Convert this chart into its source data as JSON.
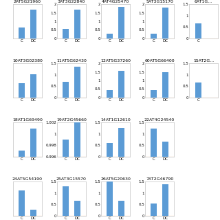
{
  "subplots": [
    {
      "title": "2AT5G21960",
      "C": 0.65,
      "DC": 1.7,
      "ylim": [
        0,
        2
      ],
      "yticks": [
        0,
        0.5,
        1,
        1.5,
        2
      ],
      "no_ylabels": true
    },
    {
      "title": "3AT3G22840",
      "C": 0.55,
      "DC": 1.7,
      "ylim": [
        0,
        2
      ],
      "yticks": [
        0,
        0.5,
        1,
        1.5,
        2
      ]
    },
    {
      "title": "4AT4G25470",
      "C": 0.25,
      "DC": 1.85,
      "ylim": [
        0,
        2
      ],
      "yticks": [
        0,
        0.5,
        1,
        1.5,
        2
      ]
    },
    {
      "title": "5AT3G15170",
      "C": 0.25,
      "DC": 1.8,
      "ylim": [
        0,
        2
      ],
      "yticks": [
        0,
        0.5,
        1,
        1.5,
        2
      ]
    },
    {
      "title": "6AT1G...",
      "C": 0.65,
      "DC": null,
      "ylim": [
        0,
        1.5
      ],
      "yticks": [
        0,
        0.5,
        1,
        1.5
      ],
      "partial": true
    },
    {
      "title": "10AT3G02380",
      "C": 0.85,
      "DC": 1.35,
      "ylim": [
        0,
        2
      ],
      "yticks": [
        0,
        0.5,
        1,
        1.5,
        2
      ],
      "no_ylabels": true
    },
    {
      "title": "11AT5G62430",
      "C": 0.7,
      "DC": 1.35,
      "ylim": [
        0,
        1.5
      ],
      "yticks": [
        0,
        0.5,
        1,
        1.5
      ]
    },
    {
      "title": "12AT5G37260",
      "C": 0.45,
      "DC": 1.55,
      "ylim": [
        0,
        2
      ],
      "yticks": [
        0,
        0.5,
        1,
        1.5,
        2
      ]
    },
    {
      "title": "60AT5G66400",
      "C": 0.45,
      "DC": 1.5,
      "ylim": [
        0,
        2
      ],
      "yticks": [
        0,
        0.5,
        1,
        1.5,
        2
      ]
    },
    {
      "title": "15AT2G...",
      "C": 0.65,
      "DC": null,
      "ylim": [
        0,
        1.5
      ],
      "yticks": [
        0,
        0.5,
        1,
        1.5
      ],
      "partial": true
    },
    {
      "title": "18AT1G69490",
      "C": 0.35,
      "DC": 1.65,
      "ylim": [
        0,
        2
      ],
      "yticks": [
        0,
        0.5,
        1,
        1.5,
        2
      ],
      "no_ylabels": true
    },
    {
      "title": "19AT2G45660",
      "C": 0.999,
      "DC": 1.002,
      "ylim": [
        0.996,
        1.002
      ],
      "yticks": [
        0.996,
        0.998,
        1.0,
        1.002
      ]
    },
    {
      "title": "14AT1G12610",
      "C": 0.6,
      "DC": 1.27,
      "ylim": [
        0,
        1.5
      ],
      "yticks": [
        0,
        0.5,
        1,
        1.5
      ]
    },
    {
      "title": "22AT4G24540",
      "C": 1.25,
      "DC": 0.65,
      "ylim": [
        0,
        1.5
      ],
      "yticks": [
        0,
        0.5,
        1,
        1.5
      ]
    },
    {
      "title": "24AT5G54190",
      "C": 1.5,
      "DC": 0.35,
      "ylim": [
        0,
        2
      ],
      "yticks": [
        0,
        0.5,
        1,
        1.5,
        2
      ],
      "no_ylabels": true
    },
    {
      "title": "25AT3G15570",
      "C": 1.3,
      "DC": 0.65,
      "ylim": [
        0,
        1.5
      ],
      "yticks": [
        0,
        0.5,
        1,
        1.5
      ]
    },
    {
      "title": "26AT5G20630",
      "C": 1.6,
      "DC": 0.65,
      "ylim": [
        0,
        1.5
      ],
      "yticks": [
        0,
        0.5,
        1,
        1.5
      ]
    },
    {
      "title": "7AT2G46790",
      "C": 0.55,
      "DC": 1.4,
      "ylim": [
        0,
        1.5
      ],
      "yticks": [
        0,
        0.5,
        1,
        1.5
      ]
    }
  ],
  "bar_color": "#5B9BD5",
  "bar_width": 0.5,
  "bg_color": "#ffffff",
  "box_color": "#CCCCCC",
  "baseline_color": "#FFA040"
}
